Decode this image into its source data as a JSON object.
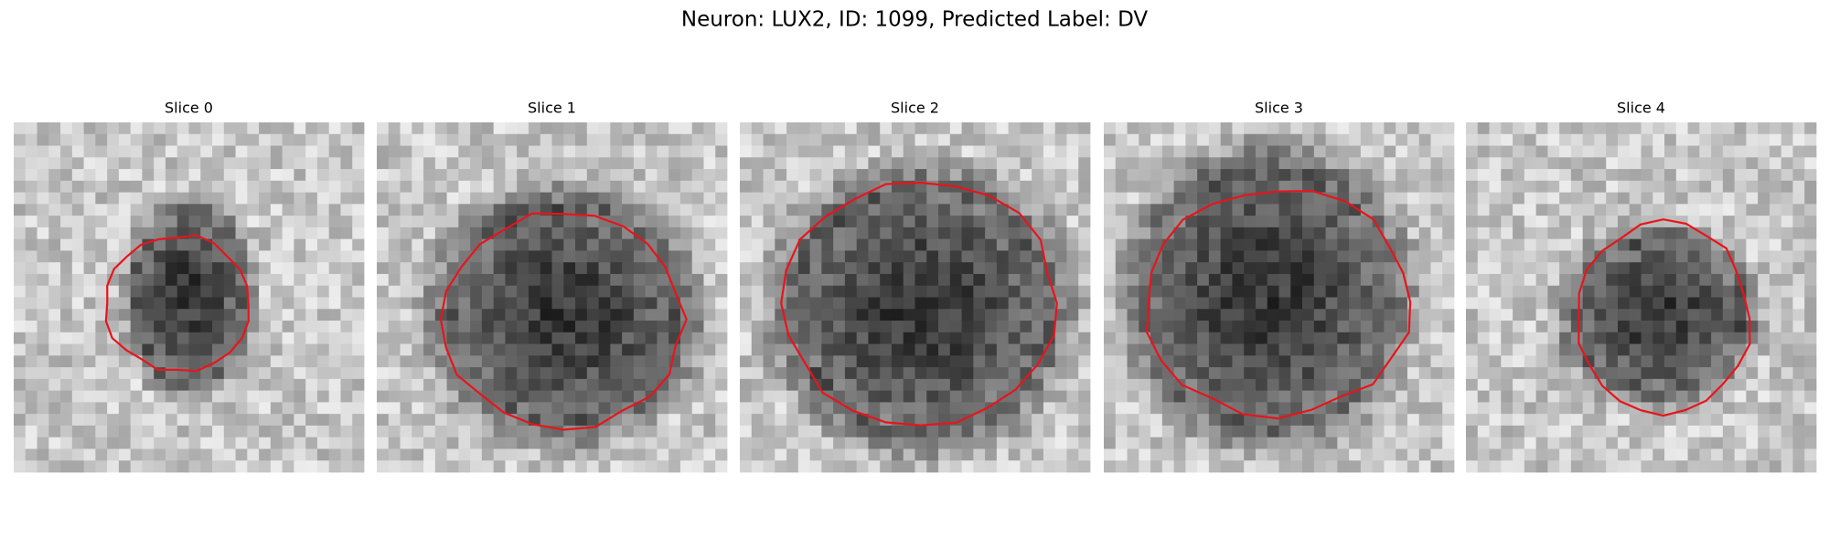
{
  "title": "Neuron: LUX2, ID: 1099, Predicted Label: DV",
  "panels": [
    {
      "title": "Slice 0"
    },
    {
      "title": "Slice 1"
    },
    {
      "title": "Slice 2"
    },
    {
      "title": "Slice 3"
    },
    {
      "title": "Slice 4"
    }
  ]
}
